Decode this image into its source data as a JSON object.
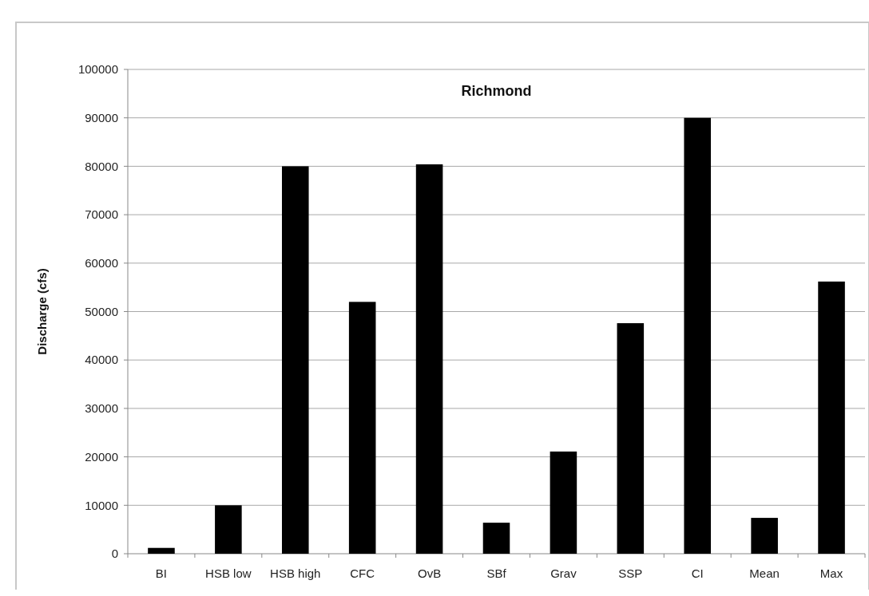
{
  "chart_data": {
    "type": "bar",
    "title": "Richmond",
    "ylabel": "Discharge (cfs)",
    "categories": [
      "BI",
      "HSB low",
      "HSB high",
      "CFC",
      "OvB",
      "SBf",
      "Grav",
      "SSP",
      "CI",
      "Mean",
      "Max"
    ],
    "values": [
      1200,
      10000,
      80000,
      52000,
      80400,
      6400,
      21100,
      47600,
      90000,
      7400,
      56200
    ],
    "color": "#000000",
    "ylim": [
      0,
      100000
    ],
    "yticks": [
      0,
      10000,
      20000,
      30000,
      40000,
      50000,
      60000,
      70000,
      80000,
      90000,
      100000
    ],
    "grid": "y"
  }
}
